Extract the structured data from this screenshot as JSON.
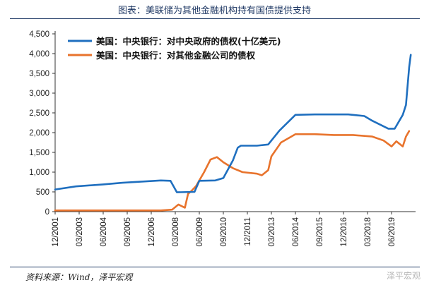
{
  "chart_data": {
    "type": "line",
    "title": "图表：美联储为其他金融机构持有国债提供支持",
    "xlabel": "",
    "ylabel": "",
    "ylim": [
      0,
      4500
    ],
    "yticks": [
      0,
      500,
      1000,
      1500,
      2000,
      2500,
      3000,
      3500,
      4000,
      4500
    ],
    "xlim": [
      "2001-12",
      "2020-09"
    ],
    "xticks": [
      "12/2001",
      "03/2003",
      "06/2004",
      "09/2005",
      "12/2006",
      "03/2008",
      "06/2009",
      "09/2010",
      "12/2011",
      "03/2013",
      "06/2014",
      "09/2015",
      "12/2016",
      "03/2018",
      "06/2019"
    ],
    "grid": false,
    "legend_position": "top-left",
    "series": [
      {
        "name": "美国：中央银行：对中央政府的债权(十亿美元)",
        "color": "#1f6fbf",
        "points": [
          [
            "2001-12",
            560
          ],
          [
            "2003-01",
            640
          ],
          [
            "2004-06",
            690
          ],
          [
            "2005-06",
            730
          ],
          [
            "2006-06",
            760
          ],
          [
            "2007-06",
            790
          ],
          [
            "2007-12",
            780
          ],
          [
            "2008-04",
            490
          ],
          [
            "2009-03",
            500
          ],
          [
            "2009-06",
            780
          ],
          [
            "2010-04",
            790
          ],
          [
            "2010-09",
            850
          ],
          [
            "2011-03",
            1300
          ],
          [
            "2011-06",
            1620
          ],
          [
            "2011-08",
            1670
          ],
          [
            "2012-06",
            1670
          ],
          [
            "2013-01",
            1700
          ],
          [
            "2013-08",
            2050
          ],
          [
            "2014-06",
            2450
          ],
          [
            "2015-06",
            2460
          ],
          [
            "2017-03",
            2460
          ],
          [
            "2018-01",
            2420
          ],
          [
            "2018-06",
            2300
          ],
          [
            "2019-04",
            2100
          ],
          [
            "2019-08",
            2100
          ],
          [
            "2020-01",
            2450
          ],
          [
            "2020-03",
            2700
          ],
          [
            "2020-05",
            3650
          ],
          [
            "2020-06",
            3970
          ]
        ]
      },
      {
        "name": "美国：中央银行：对其他金融公司的债权",
        "color": "#e8732c",
        "points": [
          [
            "2001-12",
            30
          ],
          [
            "2004-01",
            30
          ],
          [
            "2006-01",
            30
          ],
          [
            "2007-06",
            30
          ],
          [
            "2008-01",
            50
          ],
          [
            "2008-05",
            180
          ],
          [
            "2008-09",
            100
          ],
          [
            "2008-11",
            450
          ],
          [
            "2009-01",
            520
          ],
          [
            "2009-04",
            650
          ],
          [
            "2009-09",
            1000
          ],
          [
            "2010-01",
            1320
          ],
          [
            "2010-05",
            1380
          ],
          [
            "2010-09",
            1250
          ],
          [
            "2011-03",
            1100
          ],
          [
            "2011-09",
            1000
          ],
          [
            "2012-06",
            960
          ],
          [
            "2012-09",
            920
          ],
          [
            "2013-01",
            1050
          ],
          [
            "2013-03",
            1400
          ],
          [
            "2013-09",
            1750
          ],
          [
            "2014-06",
            1960
          ],
          [
            "2015-06",
            1960
          ],
          [
            "2016-06",
            1940
          ],
          [
            "2017-06",
            1940
          ],
          [
            "2018-06",
            1900
          ],
          [
            "2019-01",
            1800
          ],
          [
            "2019-06",
            1650
          ],
          [
            "2019-09",
            1780
          ],
          [
            "2020-01",
            1650
          ],
          [
            "2020-03",
            1900
          ],
          [
            "2020-05",
            2040
          ]
        ]
      }
    ]
  },
  "source_note": "资料来源：Wind，泽平宏观",
  "watermark": "泽平宏观"
}
